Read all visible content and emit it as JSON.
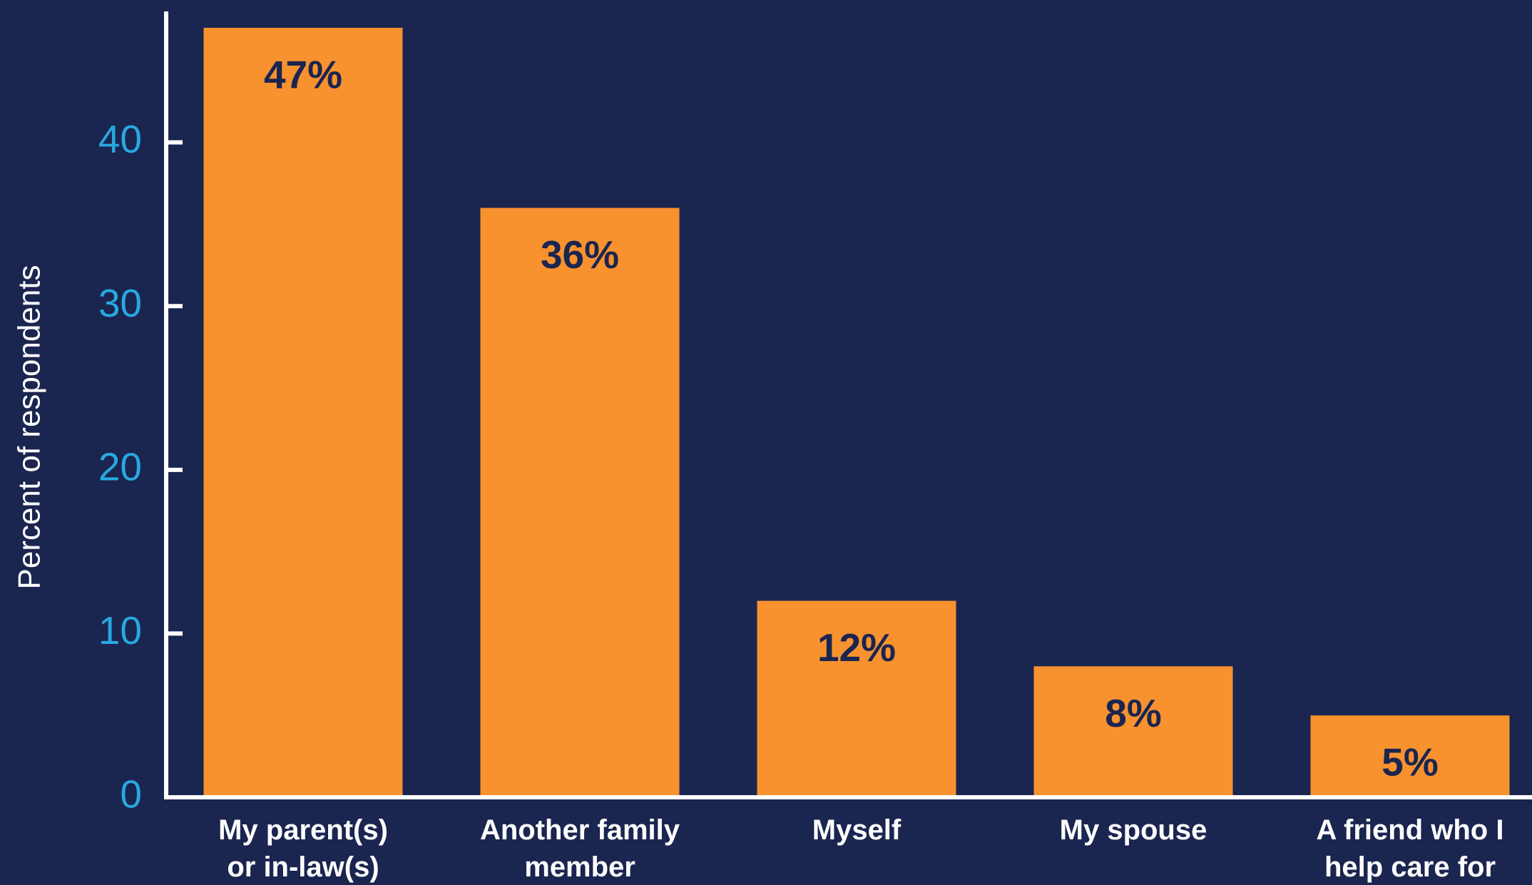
{
  "chart_data": {
    "type": "bar",
    "y_label": "Percent of respondents",
    "categories": [
      "My parent(s)\nor in-law(s)",
      "Another family\nmember",
      "Myself",
      "My spouse",
      "A friend who I\nhelp care for"
    ],
    "values": [
      47,
      36,
      12,
      8,
      5
    ],
    "value_labels": [
      "47%",
      "36%",
      "12%",
      "8%",
      "5%"
    ],
    "color": "#f7922f",
    "ylim": [
      0,
      48
    ],
    "yticks": [
      0,
      10,
      20,
      30,
      40
    ]
  }
}
